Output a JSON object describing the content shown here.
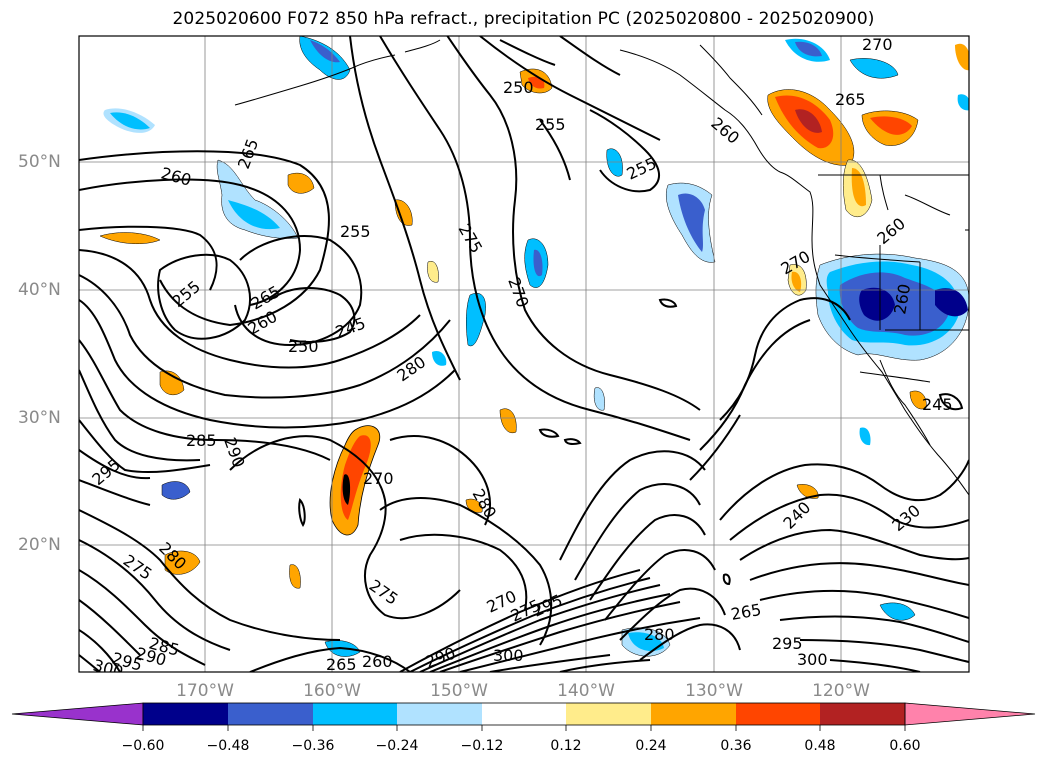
{
  "title": "2025020600 F072 850 hPa refract., precipitation PC (2025020800 - 2025020900)",
  "axes": {
    "lat_labels": [
      "50°N",
      "40°N",
      "30°N",
      "20°N"
    ],
    "lon_labels": [
      "170°W",
      "160°W",
      "150°W",
      "140°W",
      "130°W",
      "120°W"
    ]
  },
  "colorbar": {
    "ticks": [
      "−0.60",
      "−0.48",
      "−0.36",
      "−0.24",
      "−0.12",
      "0.12",
      "0.24",
      "0.36",
      "0.48",
      "0.60"
    ],
    "colors": [
      "#9932cc",
      "#00008b",
      "#3a5fcd",
      "#00bfff",
      "#b0e2ff",
      "#ffffff",
      "#ffec8b",
      "#ffa500",
      "#ff4500",
      "#b22222",
      "#ff82ab"
    ]
  },
  "contours": {
    "labels": [
      "270",
      "250",
      "255",
      "265",
      "260",
      "255",
      "275",
      "270",
      "255",
      "260",
      "265",
      "260",
      "255",
      "255",
      "265",
      "260",
      "250",
      "245",
      "280",
      "285",
      "290",
      "295",
      "270",
      "280",
      "280",
      "275",
      "275",
      "270",
      "275",
      "295",
      "280",
      "260",
      "245",
      "240",
      "230",
      "265",
      "295",
      "300",
      "285",
      "290",
      "295",
      "300",
      "265",
      "260",
      "290",
      "300",
      "270"
    ],
    "color": "#000000"
  },
  "precip_colors": {
    "light_blue": "#b0e2ff",
    "blue": "#00bfff",
    "royal": "#3a5fcd",
    "navy": "#00008b",
    "yellow": "#ffec8b",
    "orange": "#ffa500",
    "red": "#ff4500",
    "darkred": "#b22222"
  }
}
